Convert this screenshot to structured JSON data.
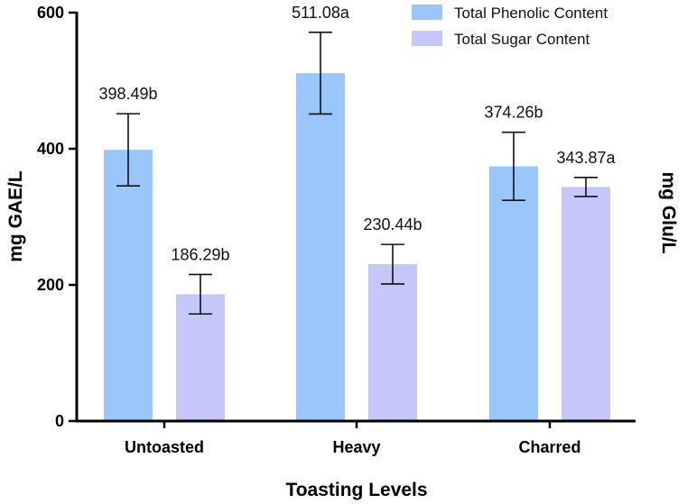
{
  "chart_data": {
    "type": "bar",
    "title": "",
    "xlabel": "Toasting Levels",
    "ylabel": "mg GAE/L",
    "ylabel_right": "mg Glu/L",
    "ylim": [
      0,
      600
    ],
    "yticks": [
      0,
      200,
      400,
      600
    ],
    "categories": [
      "Untoasted",
      "Heavy",
      "Charred"
    ],
    "series": [
      {
        "name": "Total Phenolic Content",
        "color": "#99c7fb",
        "values": [
          398.49,
          511.08,
          374.26
        ],
        "errors": [
          53,
          60,
          50
        ],
        "labels": [
          "398.49b",
          "511.08a",
          "374.26b"
        ]
      },
      {
        "name": "Total Sugar Content",
        "color": "#c5c6fa",
        "values": [
          186.29,
          230.44,
          343.87
        ],
        "errors": [
          29,
          29,
          14
        ],
        "labels": [
          "186.29b",
          "230.44b",
          "343.87a"
        ]
      }
    ],
    "legend_position": "top-right"
  }
}
